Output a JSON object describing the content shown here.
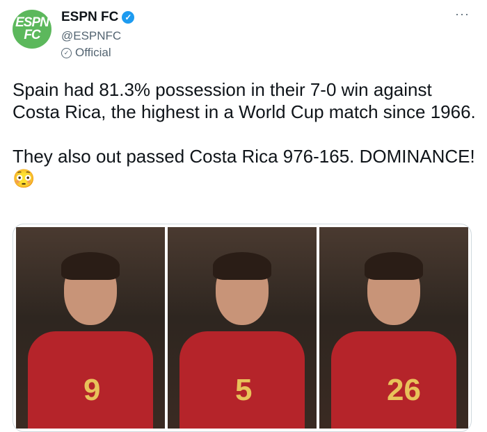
{
  "author": {
    "name": "ESPN FC",
    "handle": "@ESPNFC",
    "label": "Official",
    "avatar_text": [
      "ESPN",
      "FC"
    ],
    "verified": true,
    "brand_color": "#5cb85c"
  },
  "tweet": {
    "text": "Spain had 81.3% possession in their 7-0 win against Costa Rica, the highest in a World Cup match since 1966.\n\nThey also out passed Costa Rica 976-165. DOMINANCE! 😳"
  },
  "media": {
    "photos": [
      {
        "shirt_number": "9"
      },
      {
        "shirt_number": "5"
      },
      {
        "shirt_number": "26"
      }
    ]
  },
  "more_label": "···"
}
